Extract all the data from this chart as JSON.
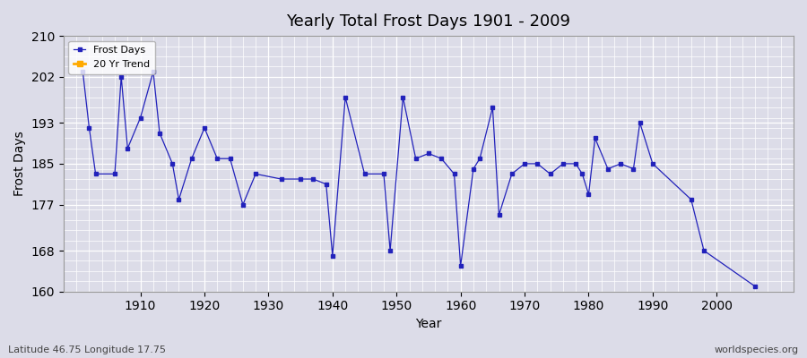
{
  "title": "Yearly Total Frost Days 1901 - 2009",
  "xlabel": "Year",
  "ylabel": "Frost Days",
  "bottom_left_label": "Latitude 46.75 Longitude 17.75",
  "bottom_right_label": "worldspecies.org",
  "legend": [
    "Frost Days",
    "20 Yr Trend"
  ],
  "legend_colors": [
    "#2222bb",
    "#ffaa00"
  ],
  "ylim": [
    160,
    210
  ],
  "yticks": [
    160,
    168,
    177,
    185,
    193,
    202,
    210
  ],
  "xlim": [
    1898,
    2012
  ],
  "xticks": [
    1910,
    1920,
    1930,
    1940,
    1950,
    1960,
    1970,
    1980,
    1990,
    2000
  ],
  "background_color": "#dcdce8",
  "grid_color": "#ffffff",
  "years": [
    1901,
    1902,
    1903,
    1906,
    1907,
    1908,
    1910,
    1912,
    1913,
    1915,
    1916,
    1918,
    1920,
    1922,
    1924,
    1926,
    1928,
    1932,
    1935,
    1937,
    1939,
    1940,
    1942,
    1945,
    1948,
    1949,
    1951,
    1953,
    1955,
    1957,
    1959,
    1960,
    1962,
    1963,
    1965,
    1966,
    1968,
    1970,
    1972,
    1974,
    1976,
    1978,
    1979,
    1980,
    1981,
    1983,
    1985,
    1987,
    1988,
    1990,
    1996,
    1998,
    2006
  ],
  "values": [
    203,
    192,
    183,
    183,
    202,
    188,
    194,
    203,
    191,
    185,
    178,
    186,
    192,
    186,
    186,
    177,
    183,
    182,
    182,
    182,
    181,
    167,
    198,
    183,
    183,
    168,
    198,
    186,
    187,
    186,
    183,
    165,
    184,
    186,
    196,
    175,
    183,
    185,
    185,
    183,
    185,
    185,
    183,
    179,
    190,
    184,
    185,
    184,
    193,
    185,
    178,
    168,
    161
  ]
}
